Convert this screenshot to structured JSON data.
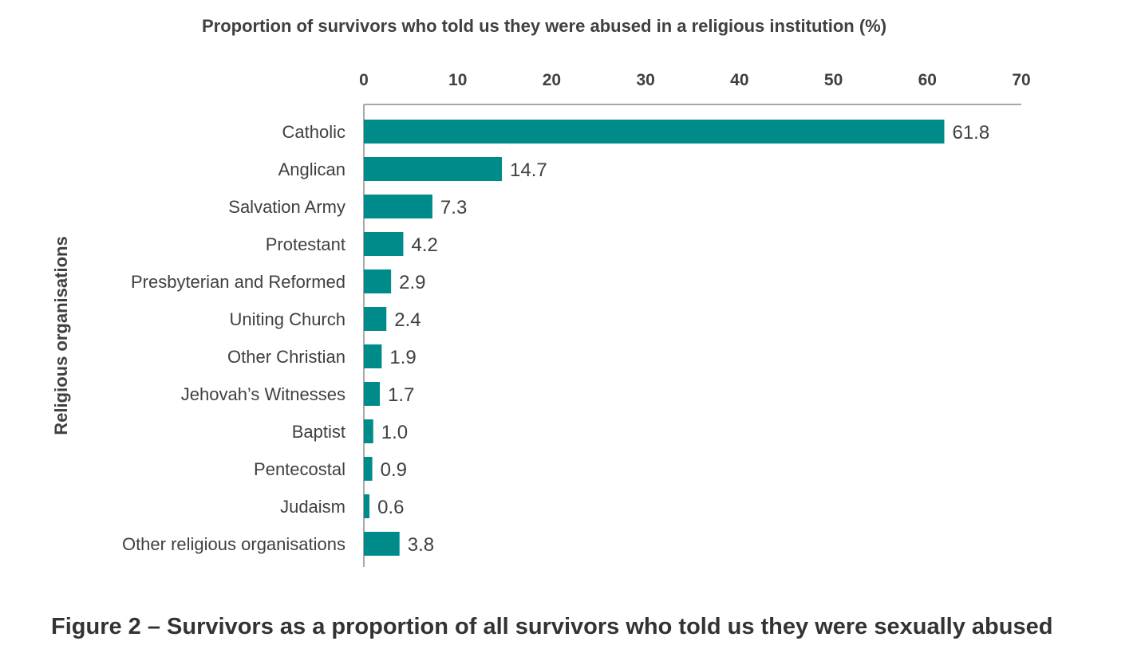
{
  "chart_data": {
    "type": "bar",
    "orientation": "horizontal",
    "title": "Proportion of survivors who told us they were abused in a religious institution (%)",
    "xlabel": "Proportion of survivors who told us they were abused in a religious institution (%)",
    "ylabel": "Religious organisations",
    "xlim": [
      0,
      70
    ],
    "xticks": [
      "0",
      "10",
      "20",
      "30",
      "40",
      "50",
      "60",
      "70"
    ],
    "x_axis_position": "top",
    "grid": false,
    "bar_color": "#008b8b",
    "categories": [
      "Catholic",
      "Anglican",
      "Salvation Army",
      "Protestant",
      "Presbyterian and Reformed",
      "Uniting Church",
      "Other Christian",
      "Jehovah’s Witnesses",
      "Baptist",
      "Pentecostal",
      "Judaism",
      "Other religious organisations"
    ],
    "values": [
      61.8,
      14.7,
      7.3,
      4.2,
      2.9,
      2.4,
      1.9,
      1.7,
      1.0,
      0.9,
      0.6,
      3.8
    ],
    "value_labels": [
      "61.8",
      "14.7",
      "7.3",
      "4.2",
      "2.9",
      "2.4",
      "1.9",
      "1.7",
      "1.0",
      "0.9",
      "0.6",
      "3.8"
    ]
  },
  "caption": "Figure 2 – Survivors as a proportion of all survivors who told us they were sexually abused"
}
